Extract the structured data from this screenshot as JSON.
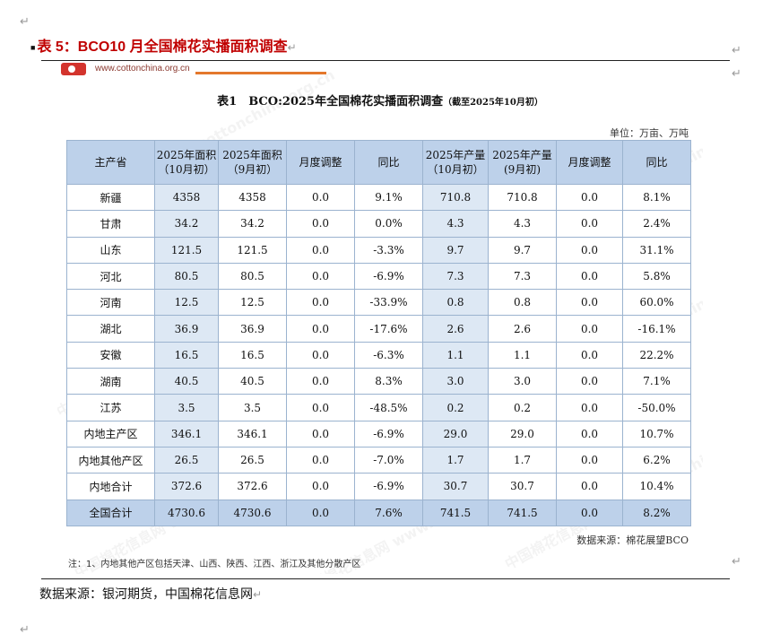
{
  "heading": "表 5：BCO10 月全国棉花实播面积调查",
  "figure": {
    "site_url": "www.cottonchina.org.cn",
    "watermark": "中国棉花信息网 www.cottonchina.org.cn",
    "table_title": "表1　BCO:2025年全国棉花实播面积调查",
    "table_title_sub": "（截至2025年10月初）",
    "unit_note": "单位：万亩、万吨",
    "columns": [
      "主产省",
      "2025年面积（10月初）",
      "2025年面积（9月初）",
      "月度调整",
      "同比",
      "2025年产量（10月初）",
      "2025年产量(9月初)",
      "月度调整",
      "同比"
    ],
    "rows": [
      [
        "新疆",
        "4358",
        "4358",
        "0.0",
        "9.1%",
        "710.8",
        "710.8",
        "0.0",
        "8.1%"
      ],
      [
        "甘肃",
        "34.2",
        "34.2",
        "0.0",
        "0.0%",
        "4.3",
        "4.3",
        "0.0",
        "2.4%"
      ],
      [
        "山东",
        "121.5",
        "121.5",
        "0.0",
        "-3.3%",
        "9.7",
        "9.7",
        "0.0",
        "31.1%"
      ],
      [
        "河北",
        "80.5",
        "80.5",
        "0.0",
        "-6.9%",
        "7.3",
        "7.3",
        "0.0",
        "5.8%"
      ],
      [
        "河南",
        "12.5",
        "12.5",
        "0.0",
        "-33.9%",
        "0.8",
        "0.8",
        "0.0",
        "60.0%"
      ],
      [
        "湖北",
        "36.9",
        "36.9",
        "0.0",
        "-17.6%",
        "2.6",
        "2.6",
        "0.0",
        "-16.1%"
      ],
      [
        "安徽",
        "16.5",
        "16.5",
        "0.0",
        "-6.3%",
        "1.1",
        "1.1",
        "0.0",
        "22.2%"
      ],
      [
        "湖南",
        "40.5",
        "40.5",
        "0.0",
        "8.3%",
        "3.0",
        "3.0",
        "0.0",
        "7.1%"
      ],
      [
        "江苏",
        "3.5",
        "3.5",
        "0.0",
        "-48.5%",
        "0.2",
        "0.2",
        "0.0",
        "-50.0%"
      ],
      [
        "内地主产区",
        "346.1",
        "346.1",
        "0.0",
        "-6.9%",
        "29.0",
        "29.0",
        "0.0",
        "10.7%"
      ],
      [
        "内地其他产区",
        "26.5",
        "26.5",
        "0.0",
        "-7.0%",
        "1.7",
        "1.7",
        "0.0",
        "6.2%"
      ],
      [
        "内地合计",
        "372.6",
        "372.6",
        "0.0",
        "-6.9%",
        "30.7",
        "30.7",
        "0.0",
        "10.4%"
      ],
      [
        "全国合计",
        "4730.6",
        "4730.6",
        "0.0",
        "7.6%",
        "741.5",
        "741.5",
        "0.0",
        "8.2%"
      ]
    ],
    "source_note": "数据来源：棉花展望BCO",
    "footnote": "注：1、内地其他产区包括天津、山西、陕西、江西、浙江及其他分散产区"
  },
  "doc_source": "数据来源：银河期货，中国棉花信息网",
  "paragraph_mark": "↵"
}
